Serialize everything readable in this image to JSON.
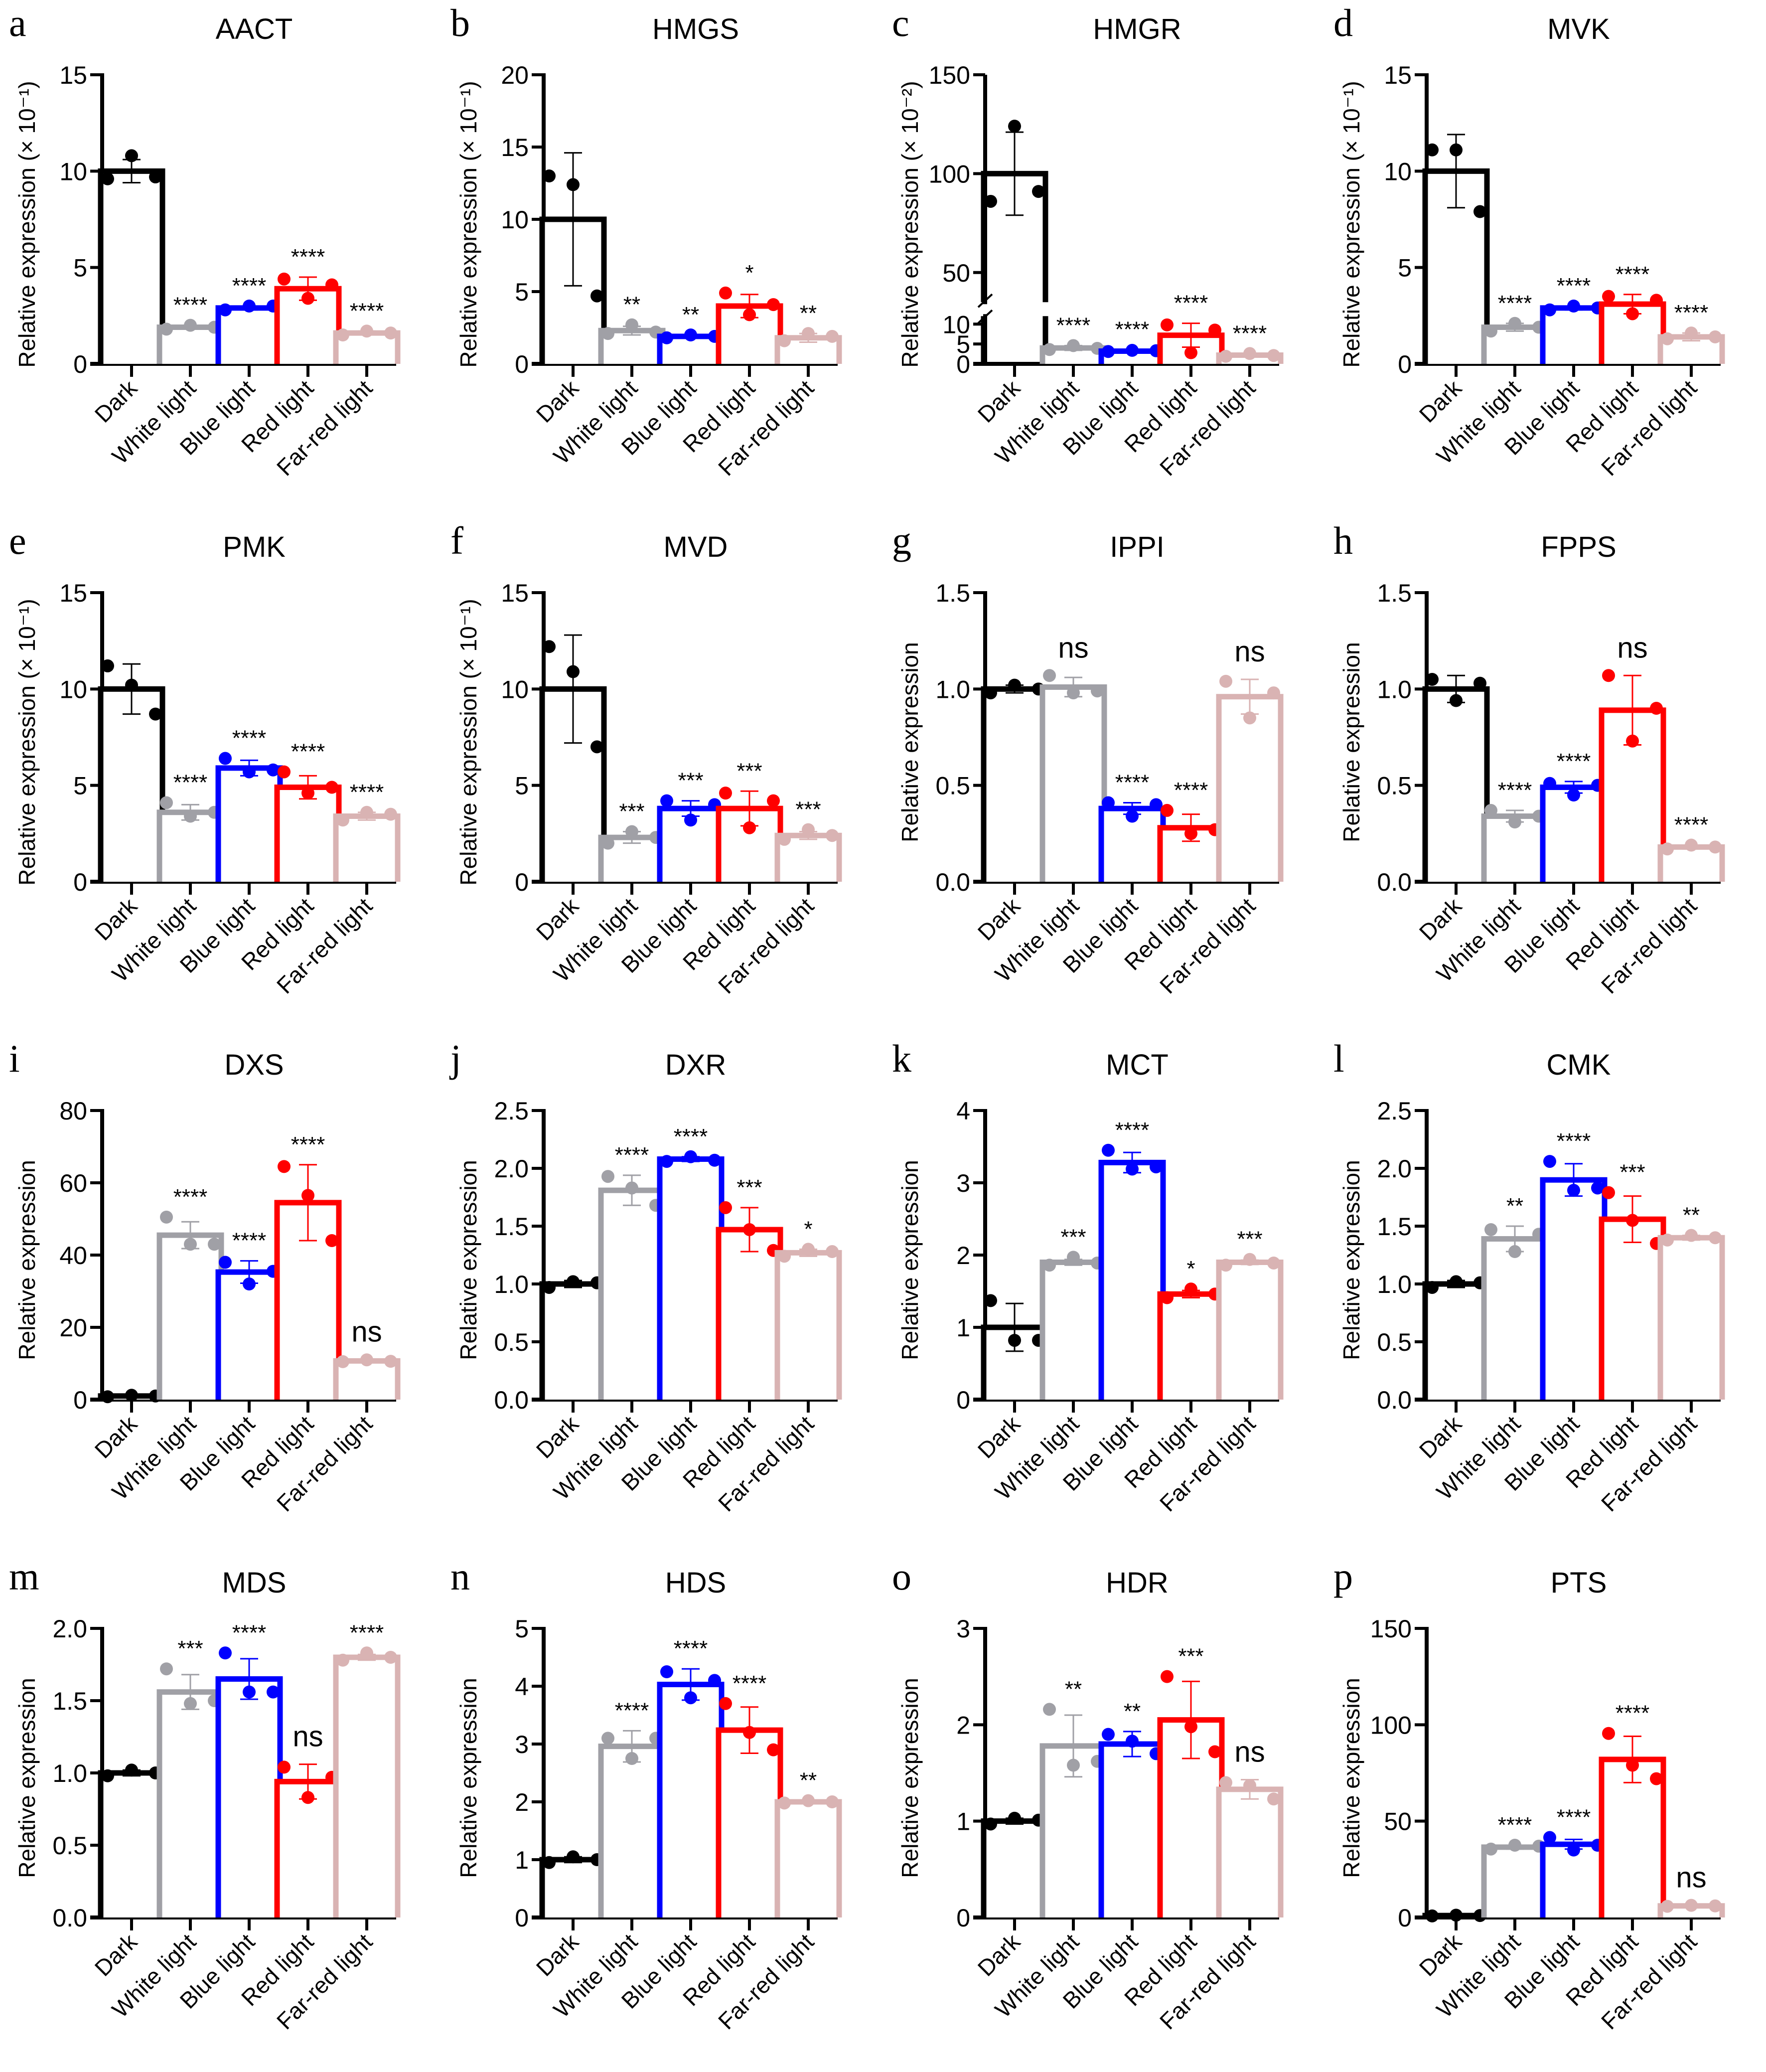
{
  "figure": {
    "ylabel_default": "Relative expression",
    "categories": [
      "Dark",
      "White light",
      "Blue light",
      "Red light",
      "Far-red light"
    ],
    "colors": {
      "Dark": "#000000",
      "White light": "#a0a0a6",
      "Blue light": "#0000ff",
      "Red light": "#ff0000",
      "Far-red light": "#d9b3b3"
    }
  },
  "chart_data": [
    {
      "panel": "a",
      "type": "bar",
      "title": "AACT",
      "ylabel": "Relative expression (× 10⁻¹)",
      "ylim": [
        0,
        15
      ],
      "yticks": [
        0,
        5,
        10,
        15
      ],
      "categories": [
        "Dark",
        "White light",
        "Blue light",
        "Red light",
        "Far-red light"
      ],
      "values": [
        10.0,
        1.9,
        2.9,
        3.9,
        1.6
      ],
      "errors": [
        0.6,
        0.1,
        0.1,
        0.6,
        0.1
      ],
      "points": [
        [
          9.6,
          10.8,
          9.7
        ],
        [
          1.8,
          2.0,
          1.9
        ],
        [
          2.8,
          3.0,
          3.0
        ],
        [
          4.4,
          3.4,
          4.1
        ],
        [
          1.5,
          1.7,
          1.6
        ]
      ],
      "significance": [
        "",
        "****",
        "****",
        "****",
        "****"
      ]
    },
    {
      "panel": "b",
      "type": "bar",
      "title": "HMGS",
      "ylabel": "Relative expression (× 10⁻¹)",
      "ylim": [
        0,
        20
      ],
      "yticks": [
        0,
        5,
        10,
        15,
        20
      ],
      "categories": [
        "Dark",
        "White light",
        "Blue light",
        "Red light",
        "Far-red light"
      ],
      "values": [
        10.0,
        2.3,
        1.9,
        4.0,
        1.8
      ],
      "errors": [
        4.6,
        0.3,
        0.1,
        0.8,
        0.3
      ],
      "points": [
        [
          13.0,
          12.4,
          4.7
        ],
        [
          2.1,
          2.7,
          2.2
        ],
        [
          1.8,
          2.0,
          1.9
        ],
        [
          4.9,
          3.4,
          4.1
        ],
        [
          1.6,
          2.1,
          1.9
        ]
      ],
      "significance": [
        "",
        "**",
        "**",
        "*",
        "**"
      ]
    },
    {
      "panel": "c",
      "type": "bar",
      "title": "HMGR",
      "ylabel": "Relative expression (× 10⁻²)",
      "ylim": [
        0,
        150
      ],
      "yticks": [
        0,
        5,
        10,
        50,
        100,
        150
      ],
      "axis_break": [
        12,
        35
      ],
      "categories": [
        "Dark",
        "White light",
        "Blue light",
        "Red light",
        "Far-red light"
      ],
      "values": [
        100,
        4.0,
        3.2,
        7.2,
        2.2
      ],
      "errors": [
        21,
        0.6,
        0.4,
        3.0,
        0.4
      ],
      "points": [
        [
          86,
          124,
          91
        ],
        [
          3.6,
          4.6,
          3.9
        ],
        [
          3.1,
          3.4,
          3.3
        ],
        [
          9.8,
          2.8,
          8.5
        ],
        [
          1.9,
          2.6,
          2.1
        ]
      ],
      "significance": [
        "",
        "****",
        "****",
        "****",
        "****"
      ]
    },
    {
      "panel": "d",
      "type": "bar",
      "title": "MVK",
      "ylabel": "Relative expression (× 10⁻¹)",
      "ylim": [
        0,
        15
      ],
      "yticks": [
        0,
        5,
        10,
        15
      ],
      "categories": [
        "Dark",
        "White light",
        "Blue light",
        "Red light",
        "Far-red light"
      ],
      "values": [
        10.0,
        1.9,
        2.9,
        3.1,
        1.4
      ],
      "errors": [
        1.9,
        0.2,
        0.1,
        0.5,
        0.2
      ],
      "points": [
        [
          11.1,
          11.1,
          7.9
        ],
        [
          1.7,
          2.1,
          1.9
        ],
        [
          2.8,
          3.0,
          2.9
        ],
        [
          3.5,
          2.6,
          3.3
        ],
        [
          1.3,
          1.6,
          1.4
        ]
      ],
      "significance": [
        "",
        "****",
        "****",
        "****",
        "****"
      ]
    },
    {
      "panel": "e",
      "type": "bar",
      "title": "PMK",
      "ylabel": "Relative expression (× 10⁻¹)",
      "ylim": [
        0,
        15
      ],
      "yticks": [
        0,
        5,
        10,
        15
      ],
      "categories": [
        "Dark",
        "White light",
        "Blue light",
        "Red light",
        "Far-red light"
      ],
      "values": [
        10.0,
        3.6,
        5.9,
        4.9,
        3.4
      ],
      "errors": [
        1.3,
        0.4,
        0.4,
        0.6,
        0.2
      ],
      "points": [
        [
          11.2,
          10.2,
          8.7
        ],
        [
          4.1,
          3.4,
          3.6
        ],
        [
          6.4,
          5.7,
          5.8
        ],
        [
          5.7,
          4.6,
          4.9
        ],
        [
          3.2,
          3.6,
          3.5
        ]
      ],
      "significance": [
        "",
        "****",
        "****",
        "****",
        "****"
      ]
    },
    {
      "panel": "f",
      "type": "bar",
      "title": "MVD",
      "ylabel": "Relative expression (× 10⁻¹)",
      "ylim": [
        0,
        15
      ],
      "yticks": [
        0,
        5,
        10,
        15
      ],
      "categories": [
        "Dark",
        "White light",
        "Blue light",
        "Red light",
        "Far-red light"
      ],
      "values": [
        10.0,
        2.3,
        3.8,
        3.8,
        2.4
      ],
      "errors": [
        2.8,
        0.3,
        0.4,
        0.9,
        0.2
      ],
      "points": [
        [
          12.2,
          10.9,
          7.0
        ],
        [
          2.0,
          2.6,
          2.3
        ],
        [
          4.2,
          3.2,
          4.0
        ],
        [
          4.6,
          2.8,
          4.2
        ],
        [
          2.2,
          2.7,
          2.4
        ]
      ],
      "significance": [
        "",
        "***",
        "***",
        "***",
        "***"
      ]
    },
    {
      "panel": "g",
      "type": "bar",
      "title": "IPPI",
      "ylabel": "Relative expression",
      "ylim": [
        0,
        1.5
      ],
      "yticks": [
        0.0,
        0.5,
        1.0,
        1.5
      ],
      "categories": [
        "Dark",
        "White light",
        "Blue light",
        "Red light",
        "Far-red light"
      ],
      "values": [
        1.0,
        1.01,
        0.38,
        0.28,
        0.96
      ],
      "errors": [
        0.02,
        0.05,
        0.03,
        0.07,
        0.09
      ],
      "points": [
        [
          0.98,
          1.02,
          1.0
        ],
        [
          1.07,
          0.98,
          0.99
        ],
        [
          0.41,
          0.34,
          0.4
        ],
        [
          0.37,
          0.25,
          0.27
        ],
        [
          1.04,
          0.85,
          0.98
        ]
      ],
      "significance": [
        "",
        "ns",
        "****",
        "****",
        "ns"
      ]
    },
    {
      "panel": "h",
      "type": "bar",
      "title": "FPPS",
      "ylabel": "Relative expression",
      "ylim": [
        0,
        1.5
      ],
      "yticks": [
        0.0,
        0.5,
        1.0,
        1.5
      ],
      "categories": [
        "Dark",
        "White light",
        "Blue light",
        "Red light",
        "Far-red light"
      ],
      "values": [
        1.0,
        0.34,
        0.49,
        0.89,
        0.18
      ],
      "errors": [
        0.07,
        0.03,
        0.03,
        0.18,
        0.01
      ],
      "points": [
        [
          1.05,
          0.94,
          1.03
        ],
        [
          0.37,
          0.31,
          0.34
        ],
        [
          0.51,
          0.45,
          0.5
        ],
        [
          1.07,
          0.73,
          0.9
        ],
        [
          0.17,
          0.19,
          0.18
        ]
      ],
      "significance": [
        "",
        "****",
        "****",
        "ns",
        "****"
      ]
    },
    {
      "panel": "i",
      "type": "bar",
      "title": "DXS",
      "ylabel": "Relative expression",
      "ylim": [
        0,
        80
      ],
      "yticks": [
        0,
        20,
        40,
        60,
        80
      ],
      "categories": [
        "Dark",
        "White light",
        "Blue light",
        "Red light",
        "Far-red light"
      ],
      "values": [
        1.0,
        45.5,
        35.3,
        54.5,
        10.7
      ],
      "errors": [
        0.2,
        3.7,
        3.1,
        10.5,
        0.4
      ],
      "points": [
        [
          0.8,
          1.2,
          1.0
        ],
        [
          50.5,
          43.0,
          43.0
        ],
        [
          38.0,
          32.0,
          35.5
        ],
        [
          64.5,
          56.5,
          44.0
        ],
        [
          10.5,
          11.0,
          10.6
        ]
      ],
      "significance": [
        "",
        "****",
        "****",
        "****",
        "ns"
      ]
    },
    {
      "panel": "j",
      "type": "bar",
      "title": "DXR",
      "ylabel": "Relative expression",
      "ylim": [
        0,
        2.5
      ],
      "yticks": [
        0,
        0.5,
        1.0,
        1.5,
        2.0,
        2.5
      ],
      "categories": [
        "Dark",
        "White light",
        "Blue light",
        "Red light",
        "Far-red light"
      ],
      "values": [
        1.0,
        1.81,
        2.08,
        1.47,
        1.27
      ],
      "errors": [
        0.03,
        0.13,
        0.02,
        0.19,
        0.03
      ],
      "points": [
        [
          0.97,
          1.02,
          1.01
        ],
        [
          1.93,
          1.83,
          1.68
        ],
        [
          2.06,
          2.1,
          2.07
        ],
        [
          1.66,
          1.47,
          1.29
        ],
        [
          1.24,
          1.3,
          1.28
        ]
      ],
      "significance": [
        "",
        "****",
        "****",
        "***",
        "*"
      ]
    },
    {
      "panel": "k",
      "type": "bar",
      "title": "MCT",
      "ylabel": "Relative expression",
      "ylim": [
        0,
        4
      ],
      "yticks": [
        0,
        1,
        2,
        3,
        4
      ],
      "categories": [
        "Dark",
        "White light",
        "Blue light",
        "Red light",
        "Far-red light"
      ],
      "values": [
        1.0,
        1.9,
        3.28,
        1.46,
        1.9
      ],
      "errors": [
        0.33,
        0.04,
        0.14,
        0.05,
        0.03
      ],
      "points": [
        [
          1.37,
          0.82,
          0.82
        ],
        [
          1.86,
          1.97,
          1.89
        ],
        [
          3.45,
          3.19,
          3.22
        ],
        [
          1.41,
          1.53,
          1.46
        ],
        [
          1.86,
          1.94,
          1.89
        ]
      ],
      "significance": [
        "",
        "***",
        "****",
        "*",
        "***"
      ]
    },
    {
      "panel": "l",
      "type": "bar",
      "title": "CMK",
      "ylabel": "Relative expression",
      "ylim": [
        0,
        2.5
      ],
      "yticks": [
        0.0,
        0.5,
        1.0,
        1.5,
        2.0,
        2.5
      ],
      "categories": [
        "Dark",
        "White light",
        "Blue light",
        "Red light",
        "Far-red light"
      ],
      "values": [
        1.0,
        1.39,
        1.9,
        1.56,
        1.4
      ],
      "errors": [
        0.03,
        0.11,
        0.14,
        0.2,
        0.02
      ],
      "points": [
        [
          0.97,
          1.02,
          1.01
        ],
        [
          1.47,
          1.28,
          1.43
        ],
        [
          2.06,
          1.81,
          1.83
        ],
        [
          1.79,
          1.55,
          1.35
        ],
        [
          1.38,
          1.42,
          1.4
        ]
      ],
      "significance": [
        "",
        "**",
        "****",
        "***",
        "**"
      ]
    },
    {
      "panel": "m",
      "type": "bar",
      "title": "MDS",
      "ylabel": "Relative expression",
      "ylim": [
        0,
        2.0
      ],
      "yticks": [
        0,
        0.5,
        1.0,
        1.5,
        2.0
      ],
      "categories": [
        "Dark",
        "White light",
        "Blue light",
        "Red light",
        "Far-red light"
      ],
      "values": [
        1.0,
        1.56,
        1.65,
        0.94,
        1.8
      ],
      "errors": [
        0.02,
        0.12,
        0.14,
        0.12,
        0.02
      ],
      "points": [
        [
          0.98,
          1.02,
          1.0
        ],
        [
          1.72,
          1.48,
          1.5
        ],
        [
          1.83,
          1.56,
          1.56
        ],
        [
          1.04,
          0.83,
          0.97
        ],
        [
          1.78,
          1.83,
          1.8
        ]
      ],
      "significance": [
        "",
        "***",
        "****",
        "ns",
        "****"
      ]
    },
    {
      "panel": "n",
      "type": "bar",
      "title": "HDS",
      "ylabel": "Relative expression",
      "ylim": [
        0,
        5
      ],
      "yticks": [
        0,
        1,
        2,
        3,
        4,
        5
      ],
      "categories": [
        "Dark",
        "White light",
        "Blue light",
        "Red light",
        "Far-red light"
      ],
      "values": [
        1.0,
        2.96,
        4.03,
        3.24,
        2.0
      ],
      "errors": [
        0.05,
        0.27,
        0.27,
        0.4,
        0.02
      ],
      "points": [
        [
          0.95,
          1.05,
          1.0
        ],
        [
          3.1,
          2.75,
          3.1
        ],
        [
          4.25,
          3.8,
          4.1
        ],
        [
          3.7,
          3.2,
          2.9
        ],
        [
          1.98,
          2.02,
          2.0
        ]
      ],
      "significance": [
        "",
        "****",
        "****",
        "****",
        "**"
      ]
    },
    {
      "panel": "o",
      "type": "bar",
      "title": "HDR",
      "ylabel": "Relative expression",
      "ylim": [
        0,
        3
      ],
      "yticks": [
        0,
        1,
        2,
        3
      ],
      "categories": [
        "Dark",
        "White light",
        "Blue light",
        "Red light",
        "Far-red light"
      ],
      "values": [
        1.0,
        1.78,
        1.8,
        2.05,
        1.33
      ],
      "errors": [
        0.03,
        0.32,
        0.13,
        0.4,
        0.1
      ],
      "points": [
        [
          0.97,
          1.03,
          1.01
        ],
        [
          2.16,
          1.58,
          1.62
        ],
        [
          1.9,
          1.83,
          1.7
        ],
        [
          2.5,
          1.98,
          1.72
        ],
        [
          1.4,
          1.37,
          1.23
        ]
      ],
      "significance": [
        "",
        "**",
        "**",
        "***",
        "ns"
      ]
    },
    {
      "panel": "p",
      "type": "bar",
      "title": "PTS",
      "ylabel": "Relative expression",
      "ylim": [
        0,
        150
      ],
      "yticks": [
        0,
        50,
        100,
        150
      ],
      "categories": [
        "Dark",
        "White light",
        "Blue light",
        "Red light",
        "Far-red light"
      ],
      "values": [
        1.0,
        36.5,
        38.0,
        82.0,
        6.0
      ],
      "errors": [
        0.3,
        1.0,
        2.5,
        12.0,
        0.4
      ],
      "points": [
        [
          0.8,
          1.2,
          1.0
        ],
        [
          35.5,
          37.5,
          37.0
        ],
        [
          41.5,
          35.0,
          37.5
        ],
        [
          95.5,
          79.0,
          72.0
        ],
        [
          5.8,
          6.3,
          6.0
        ]
      ],
      "significance": [
        "",
        "****",
        "****",
        "****",
        "ns"
      ]
    }
  ]
}
